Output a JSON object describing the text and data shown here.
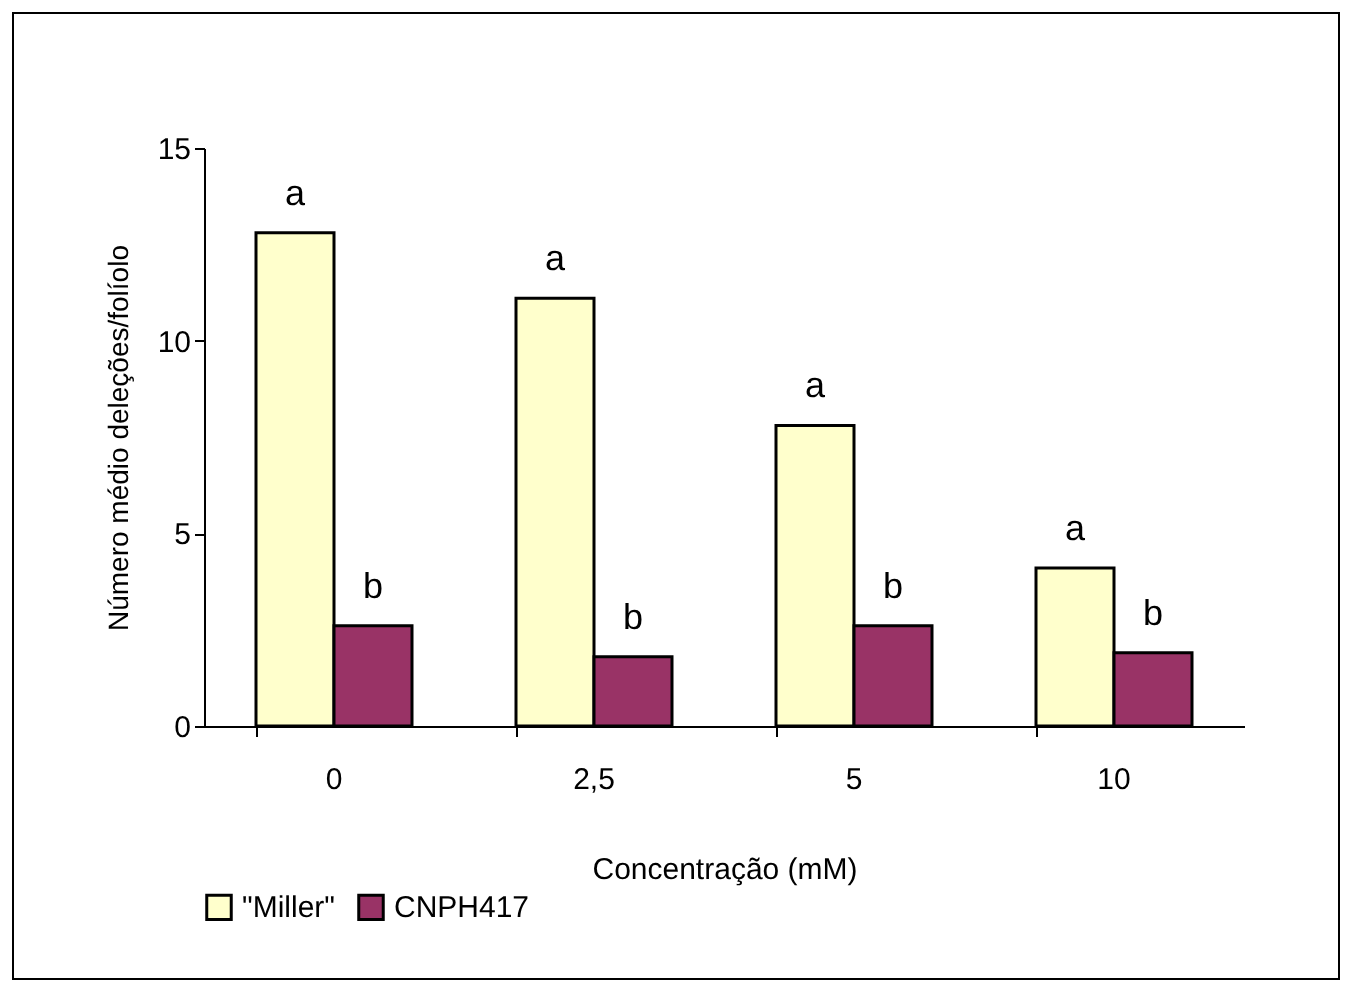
{
  "chart_data": {
    "type": "bar",
    "xlabel": "Concentração  (mM)",
    "ylabel": "Número médio deleções/folíolo",
    "categories": [
      "0",
      "2,5",
      "5",
      "10"
    ],
    "series": [
      {
        "name": "\"Miller\"",
        "color": "#ffffcc",
        "values": [
          12.8,
          11.1,
          7.8,
          4.1
        ],
        "value_labels": [
          "a",
          "a",
          "a",
          "a"
        ]
      },
      {
        "name": "CNPH417",
        "color": "#993366",
        "values": [
          2.6,
          1.8,
          2.6,
          1.9
        ],
        "value_labels": [
          "b",
          "b",
          "b",
          "b"
        ]
      }
    ],
    "ylim": [
      0,
      15
    ],
    "yticks": [
      0,
      5,
      10,
      15
    ],
    "grid": false,
    "legend": "bottom"
  }
}
